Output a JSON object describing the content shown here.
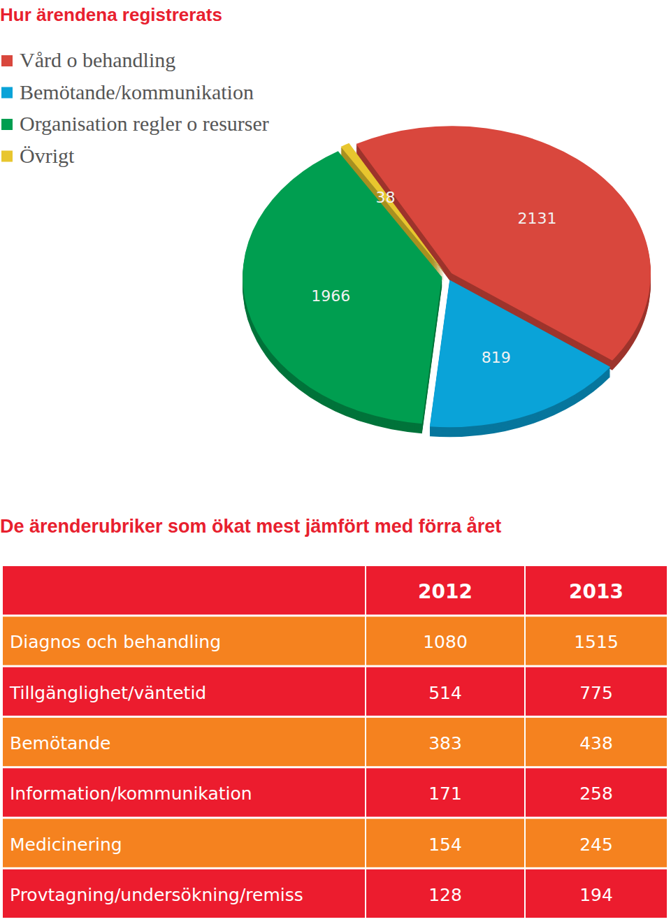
{
  "chart_data": {
    "type": "pie",
    "title": "Hur ärendena registrerats",
    "categories": [
      "Vård o behandling",
      "Bemötande/kommunikation",
      "Organisation regler o resurser",
      "Övrigt"
    ],
    "values": [
      2131,
      819,
      1966,
      38
    ],
    "colors": [
      "#d9473d",
      "#0aa3d8",
      "#009e50",
      "#e8c62e"
    ],
    "data_labels": true,
    "legend": "top-left"
  },
  "table": {
    "title": "De ärenderubriker som ökat mest jämfört med förra året",
    "columns": [
      "2012",
      "2013"
    ],
    "rows": [
      {
        "label": "Diagnos och behandling",
        "values": [
          1080,
          1515
        ]
      },
      {
        "label": "Tillgänglighet/väntetid",
        "values": [
          514,
          775
        ]
      },
      {
        "label": "Bemötande",
        "values": [
          383,
          438
        ]
      },
      {
        "label": "Information/kommunikation",
        "values": [
          171,
          258
        ]
      },
      {
        "label": "Medicinering",
        "values": [
          154,
          245
        ]
      },
      {
        "label": "Provtagning/undersökning/remiss",
        "values": [
          128,
          194
        ]
      }
    ]
  }
}
